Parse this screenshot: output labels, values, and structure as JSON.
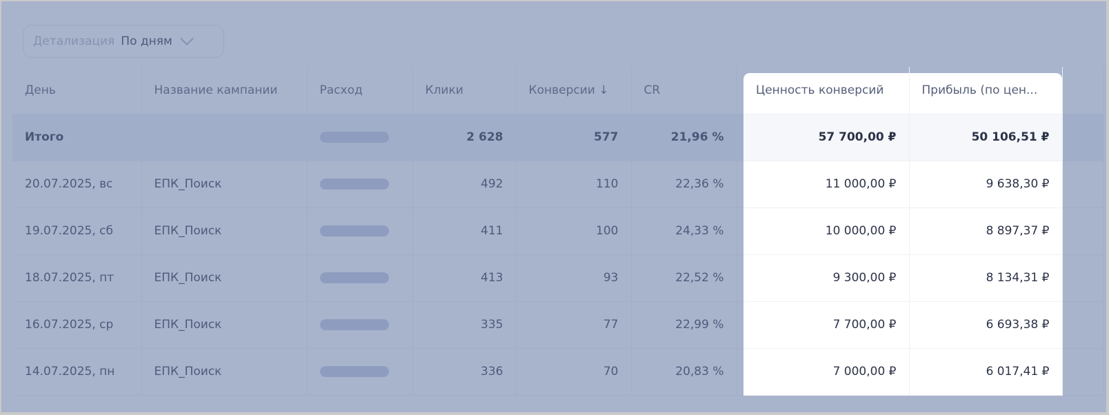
{
  "detail": {
    "label": "Детализация",
    "value": "По дням"
  },
  "columns": [
    "День",
    "Название кампании",
    "Расход",
    "Клики",
    "Конверсии ↓",
    "CR",
    "Ценность конверсий",
    "Прибыль (по цен..."
  ],
  "total": {
    "day": "Итого",
    "campaign": "",
    "clicks": "2 628",
    "conversions": "577",
    "cr": "21,96 %",
    "value": "57 700,00 ₽",
    "profit": "50 106,51 ₽"
  },
  "rows": [
    {
      "day": "20.07.2025, вс",
      "campaign": "ЕПК_Поиск",
      "clicks": "492",
      "conversions": "110",
      "cr": "22,36 %",
      "value": "11 000,00 ₽",
      "profit": "9 638,30 ₽"
    },
    {
      "day": "19.07.2025, сб",
      "campaign": "ЕПК_Поиск",
      "clicks": "411",
      "conversions": "100",
      "cr": "24,33 %",
      "value": "10 000,00 ₽",
      "profit": "8 897,37 ₽"
    },
    {
      "day": "18.07.2025, пт",
      "campaign": "ЕПК_Поиск",
      "clicks": "413",
      "conversions": "93",
      "cr": "22,52 %",
      "value": "9 300,00 ₽",
      "profit": "8 134,31 ₽"
    },
    {
      "day": "16.07.2025, ср",
      "campaign": "ЕПК_Поиск",
      "clicks": "335",
      "conversions": "77",
      "cr": "22,99 %",
      "value": "7 700,00 ₽",
      "profit": "6 693,38 ₽"
    },
    {
      "day": "14.07.2025, пн",
      "campaign": "ЕПК_Поиск",
      "clicks": "336",
      "conversions": "70",
      "cr": "20,83 %",
      "value": "7 000,00 ₽",
      "profit": "6 017,41 ₽"
    }
  ]
}
